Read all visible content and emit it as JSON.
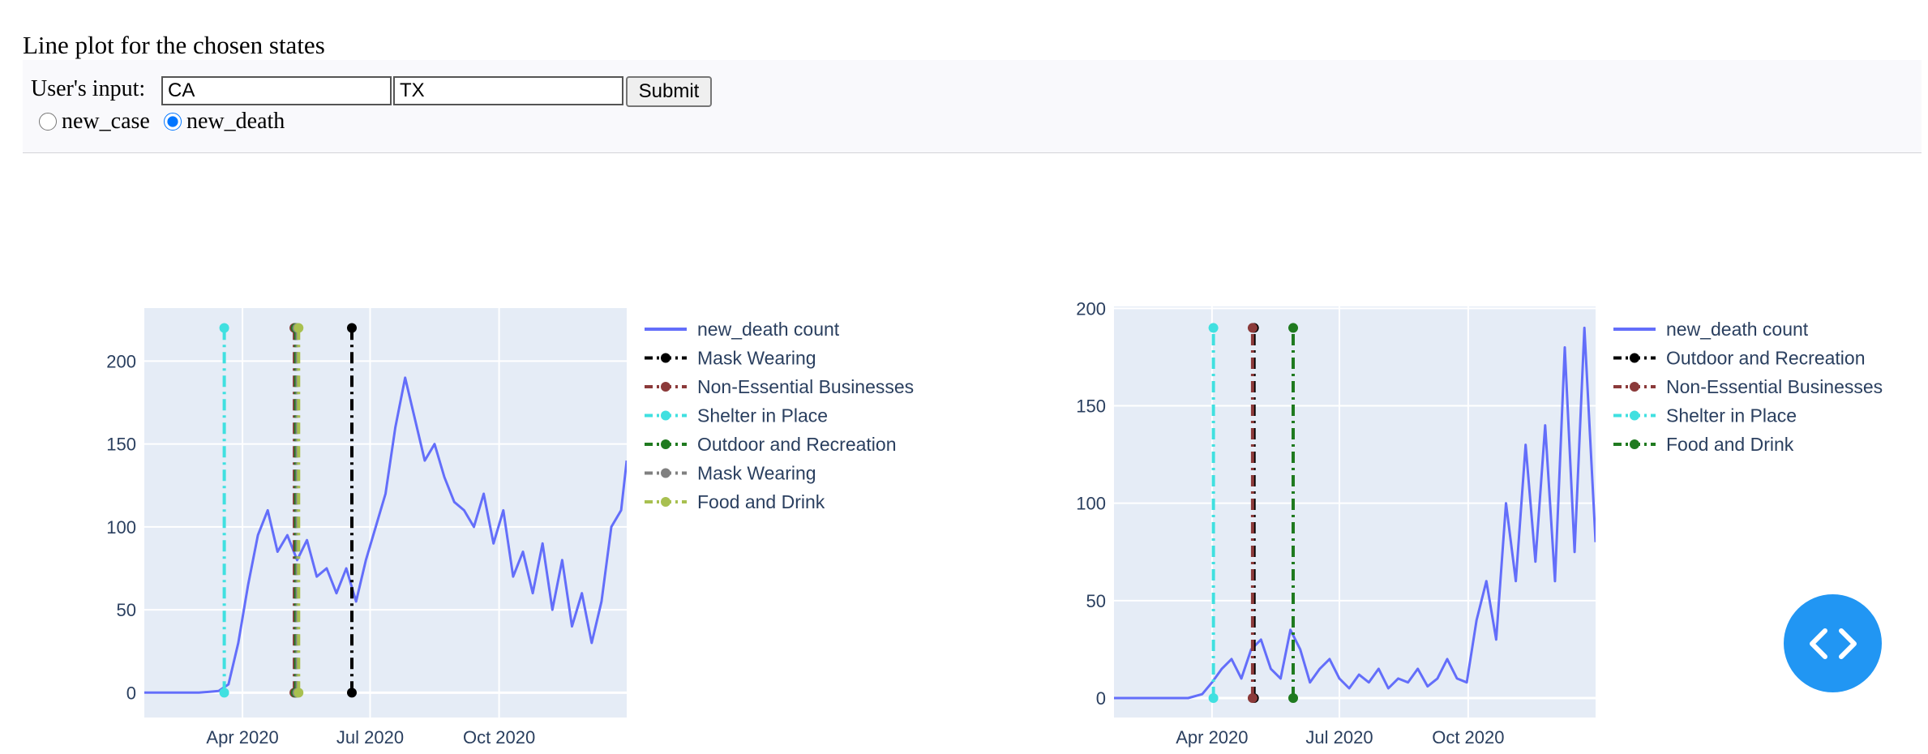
{
  "page": {
    "title": "Line plot for the chosen states"
  },
  "form": {
    "label": "User's input:",
    "state1": "CA",
    "state2": "TX",
    "submit_label": "Submit",
    "radio_options": [
      "new_case",
      "new_death"
    ],
    "selected_option": "new_death"
  },
  "fab": {
    "icon": "code-icon",
    "color": "#2196f3"
  },
  "chart_data": [
    {
      "type": "line",
      "state": "CA",
      "title": "",
      "xlabel": "",
      "ylabel": "",
      "xlim": [
        "2020-01-22",
        "2020-12-31"
      ],
      "ylim": [
        -15,
        232
      ],
      "x_ticks": [
        "Apr 2020",
        "Jul 2020",
        "Oct 2020"
      ],
      "y_ticks": [
        0,
        50,
        100,
        150,
        200
      ],
      "grid": true,
      "legend_position": "right",
      "series": [
        {
          "name": "new_death count",
          "color": "#636efa",
          "x": [
            "2020-01-22",
            "2020-03-01",
            "2020-03-15",
            "2020-03-22",
            "2020-03-29",
            "2020-04-05",
            "2020-04-12",
            "2020-04-19",
            "2020-04-26",
            "2020-05-03",
            "2020-05-10",
            "2020-05-17",
            "2020-05-24",
            "2020-05-31",
            "2020-06-07",
            "2020-06-14",
            "2020-06-21",
            "2020-06-28",
            "2020-07-05",
            "2020-07-12",
            "2020-07-19",
            "2020-07-26",
            "2020-08-02",
            "2020-08-09",
            "2020-08-16",
            "2020-08-23",
            "2020-08-30",
            "2020-09-06",
            "2020-09-13",
            "2020-09-20",
            "2020-09-27",
            "2020-10-04",
            "2020-10-11",
            "2020-10-18",
            "2020-10-25",
            "2020-11-01",
            "2020-11-08",
            "2020-11-15",
            "2020-11-22",
            "2020-11-29",
            "2020-12-06",
            "2020-12-13",
            "2020-12-20",
            "2020-12-27",
            "2020-12-31"
          ],
          "y": [
            0,
            0,
            1,
            5,
            30,
            65,
            95,
            110,
            85,
            95,
            80,
            92,
            70,
            75,
            60,
            75,
            55,
            80,
            100,
            120,
            160,
            190,
            165,
            140,
            150,
            130,
            115,
            110,
            100,
            120,
            90,
            110,
            70,
            85,
            60,
            90,
            50,
            80,
            40,
            60,
            30,
            55,
            100,
            110,
            140
          ]
        },
        {
          "name": "Mask Wearing",
          "color": "#000000",
          "dash": "dashdot",
          "x": [
            "2020-06-18",
            "2020-06-18"
          ],
          "y": [
            0,
            220
          ]
        },
        {
          "name": "Non-Essential Businesses",
          "color": "#8b3a3a",
          "dash": "dashdot",
          "x": [
            "2020-05-08",
            "2020-05-08"
          ],
          "y": [
            0,
            220
          ]
        },
        {
          "name": "Shelter in Place",
          "color": "#40e0e0",
          "dash": "dashdot",
          "x": [
            "2020-03-19",
            "2020-03-19"
          ],
          "y": [
            0,
            220
          ]
        },
        {
          "name": "Outdoor and Recreation",
          "color": "#1f7a1f",
          "dash": "dashdot",
          "x": [
            "2020-05-09",
            "2020-05-09"
          ],
          "y": [
            0,
            220
          ]
        },
        {
          "name": "Mask Wearing",
          "color": "#808080",
          "dash": "dashdot",
          "x": [
            "2020-05-10",
            "2020-05-10"
          ],
          "y": [
            0,
            220
          ]
        },
        {
          "name": "Food and Drink",
          "color": "#a8c050",
          "dash": "dashdot",
          "x": [
            "2020-05-11",
            "2020-05-11"
          ],
          "y": [
            0,
            220
          ]
        }
      ]
    },
    {
      "type": "line",
      "state": "TX",
      "title": "",
      "xlabel": "",
      "ylabel": "",
      "xlim": [
        "2020-01-22",
        "2020-12-31"
      ],
      "ylim": [
        -10,
        201
      ],
      "x_ticks": [
        "Apr 2020",
        "Jul 2020",
        "Oct 2020"
      ],
      "y_ticks": [
        0,
        50,
        100,
        150,
        200
      ],
      "grid": true,
      "legend_position": "right",
      "series": [
        {
          "name": "new_death count",
          "color": "#636efa",
          "x": [
            "2020-01-22",
            "2020-03-01",
            "2020-03-15",
            "2020-03-25",
            "2020-04-01",
            "2020-04-08",
            "2020-04-15",
            "2020-04-22",
            "2020-04-29",
            "2020-05-06",
            "2020-05-13",
            "2020-05-20",
            "2020-05-27",
            "2020-06-03",
            "2020-06-10",
            "2020-06-17",
            "2020-06-24",
            "2020-07-01",
            "2020-07-08",
            "2020-07-15",
            "2020-07-22",
            "2020-07-29",
            "2020-08-05",
            "2020-08-12",
            "2020-08-19",
            "2020-08-26",
            "2020-09-02",
            "2020-09-09",
            "2020-09-16",
            "2020-09-23",
            "2020-09-30",
            "2020-10-07",
            "2020-10-14",
            "2020-10-21",
            "2020-10-28",
            "2020-11-04",
            "2020-11-11",
            "2020-11-18",
            "2020-11-25",
            "2020-12-02",
            "2020-12-09",
            "2020-12-16",
            "2020-12-23",
            "2020-12-31"
          ],
          "y": [
            0,
            0,
            0,
            2,
            8,
            15,
            20,
            10,
            25,
            30,
            15,
            10,
            35,
            25,
            8,
            15,
            20,
            10,
            5,
            12,
            8,
            15,
            5,
            10,
            8,
            15,
            6,
            10,
            20,
            10,
            8,
            40,
            60,
            30,
            100,
            60,
            130,
            70,
            140,
            60,
            180,
            75,
            190,
            80
          ]
        },
        {
          "name": "Outdoor and Recreation",
          "color": "#000000",
          "dash": "dashdot",
          "x": [
            "2020-05-01",
            "2020-05-01"
          ],
          "y": [
            0,
            190
          ]
        },
        {
          "name": "Non-Essential Businesses",
          "color": "#8b3a3a",
          "dash": "dashdot",
          "x": [
            "2020-04-30",
            "2020-04-30"
          ],
          "y": [
            0,
            190
          ]
        },
        {
          "name": "Shelter in Place",
          "color": "#40e0e0",
          "dash": "dashdot",
          "x": [
            "2020-04-02",
            "2020-04-02"
          ],
          "y": [
            0,
            190
          ]
        },
        {
          "name": "Food and Drink",
          "color": "#1f7a1f",
          "dash": "dashdot",
          "x": [
            "2020-05-29",
            "2020-05-29"
          ],
          "y": [
            0,
            190
          ]
        }
      ]
    }
  ]
}
